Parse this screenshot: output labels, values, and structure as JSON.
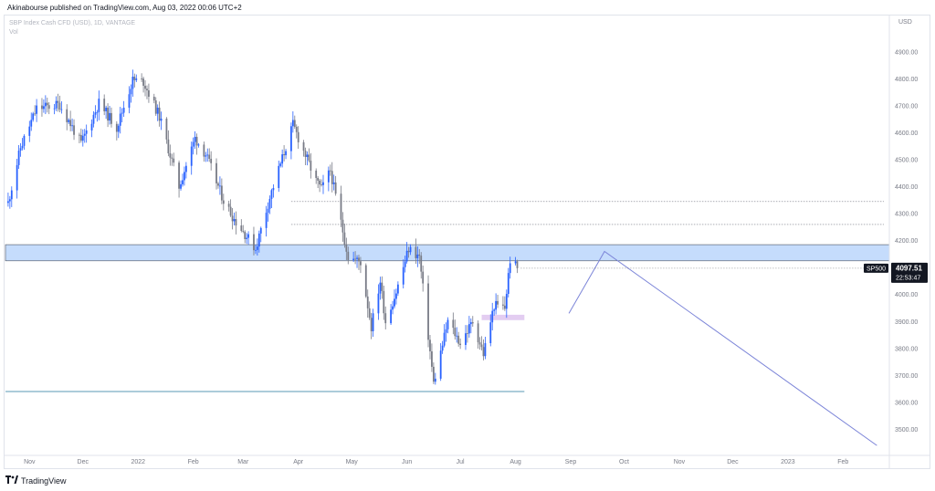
{
  "header": {
    "publish_line": "Akinabourse published on TradingView.com, Aug 03, 2022 00:06 UTC+2"
  },
  "legend": {
    "symbol_line": "SBP Index Cash CFD (USD), 1D, VANTAGE",
    "vol_label": "Vol"
  },
  "price_axis": {
    "currency": "USD",
    "symbol_tag": "SP500",
    "last_price": "4097.51",
    "countdown": "22:53:47"
  },
  "footer": {
    "brand": "TradingView"
  },
  "colors": {
    "up": "#2962ff",
    "down": "#787b86",
    "zone_fill": "#bbd6fb",
    "zone_border": "#4c525e",
    "projection": "#7b84d8",
    "support": "#5a9ab5",
    "pink_zone": "#e0c8ef"
  },
  "chart_data": {
    "type": "candlestick",
    "title": "SBP Index Cash CFD (USD), 1D, VANTAGE",
    "ylabel": "USD",
    "ylim": [
      3410,
      5035
    ],
    "x_tick_labels": [
      "Nov",
      "Dec",
      "2022",
      "Feb",
      "Mar",
      "Apr",
      "May",
      "Jun",
      "Jul",
      "Aug",
      "Sep",
      "Oct",
      "Nov",
      "Dec",
      "2023",
      "Feb"
    ],
    "y_ticks": [
      3500,
      3600,
      3700,
      3800,
      3900,
      4000,
      4100,
      4200,
      4300,
      4400,
      4500,
      4600,
      4700,
      4800,
      4900
    ],
    "y_tick_labels": [
      "3500.00",
      "3600.00",
      "3700.00",
      "3800.00",
      "3900.00",
      "4000.00",
      "4100.00",
      "4200.00",
      "4300.00",
      "4400.00",
      "4500.00",
      "4600.00",
      "4700.00",
      "4800.00",
      "4900.00"
    ],
    "anchor_prices": [
      {
        "date": "2021-10-20",
        "close": 4340
      },
      {
        "date": "2021-10-27",
        "close": 4545
      },
      {
        "date": "2021-11-05",
        "close": 4690
      },
      {
        "date": "2021-11-18",
        "close": 4705
      },
      {
        "date": "2021-11-30",
        "close": 4560
      },
      {
        "date": "2021-12-10",
        "close": 4710
      },
      {
        "date": "2021-12-20",
        "close": 4620
      },
      {
        "date": "2021-12-29",
        "close": 4795
      },
      {
        "date": "2022-01-04",
        "close": 4790
      },
      {
        "date": "2022-01-13",
        "close": 4660
      },
      {
        "date": "2022-01-24",
        "close": 4400
      },
      {
        "date": "2022-02-02",
        "close": 4580
      },
      {
        "date": "2022-02-08",
        "close": 4520
      },
      {
        "date": "2022-02-18",
        "close": 4350
      },
      {
        "date": "2022-02-24",
        "close": 4280
      },
      {
        "date": "2022-03-08",
        "close": 4170
      },
      {
        "date": "2022-03-16",
        "close": 4360
      },
      {
        "date": "2022-03-29",
        "close": 4630
      },
      {
        "date": "2022-04-11",
        "close": 4420
      },
      {
        "date": "2022-04-14",
        "close": 4390
      },
      {
        "date": "2022-04-19",
        "close": 4460
      },
      {
        "date": "2022-04-29",
        "close": 4140
      },
      {
        "date": "2022-05-06",
        "close": 4120
      },
      {
        "date": "2022-05-12",
        "close": 3880
      },
      {
        "date": "2022-05-17",
        "close": 4050
      },
      {
        "date": "2022-05-20",
        "close": 3900
      },
      {
        "date": "2022-05-26",
        "close": 4010
      },
      {
        "date": "2022-06-02",
        "close": 4170
      },
      {
        "date": "2022-06-08",
        "close": 4140
      },
      {
        "date": "2022-06-16",
        "close": 3670
      },
      {
        "date": "2022-06-24",
        "close": 3900
      },
      {
        "date": "2022-07-01",
        "close": 3820
      },
      {
        "date": "2022-07-08",
        "close": 3900
      },
      {
        "date": "2022-07-14",
        "close": 3780
      },
      {
        "date": "2022-07-20",
        "close": 3960
      },
      {
        "date": "2022-07-26",
        "close": 3950
      },
      {
        "date": "2022-07-29",
        "close": 4130
      },
      {
        "date": "2022-08-02",
        "close": 4097.51
      }
    ],
    "drawings": {
      "resistance_zone": {
        "from": 4125,
        "to": 4185
      },
      "dotted_levels": [
        4345,
        4260
      ],
      "support_line": 3640,
      "pink_zone": {
        "from": 3905,
        "to": 3925,
        "start": "2022-07-13",
        "end": "2022-08-06"
      },
      "projection": [
        {
          "date": "2022-08-31",
          "price": 3930
        },
        {
          "date": "2022-09-20",
          "price": 4160
        },
        {
          "date": "2023-02-20",
          "price": 3440
        }
      ]
    }
  }
}
